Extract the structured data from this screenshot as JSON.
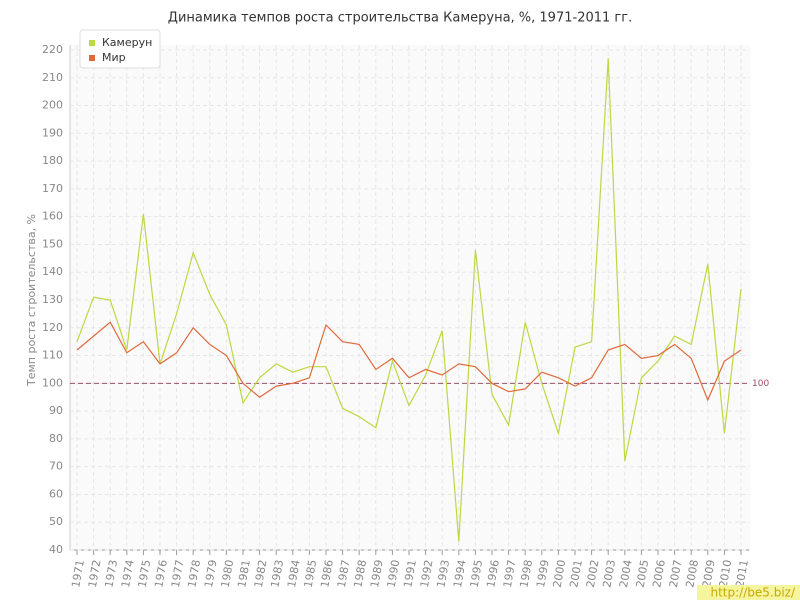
{
  "chart_data": {
    "type": "line",
    "title": "Динамика темпов роста строительства Камеруна, %, 1971-2011 гг.",
    "y_label": "Темп роста строительства, %",
    "categories": [
      "1971",
      "1972",
      "1973",
      "1974",
      "1975",
      "1976",
      "1977",
      "1978",
      "1979",
      "1980",
      "1981",
      "1982",
      "1983",
      "1984",
      "1985",
      "1986",
      "1987",
      "1988",
      "1989",
      "1990",
      "1991",
      "1992",
      "1993",
      "1994",
      "1995",
      "1996",
      "1997",
      "1998",
      "1999",
      "2000",
      "2001",
      "2002",
      "2003",
      "2004",
      "2005",
      "2006",
      "2007",
      "2008",
      "2009",
      "2010",
      "2011"
    ],
    "series": [
      {
        "name": "Камерун",
        "color": "#bcd843",
        "values": [
          115,
          131,
          130,
          112,
          161,
          107,
          125,
          147,
          132,
          121,
          93,
          102,
          107,
          104,
          106,
          106,
          91,
          88,
          84,
          108,
          92,
          103,
          119,
          43,
          148,
          96,
          85,
          122,
          100,
          82,
          113,
          115,
          217,
          72,
          102,
          108,
          117,
          114,
          143,
          82,
          134
        ]
      },
      {
        "name": "Мир",
        "color": "#e0693c",
        "values": [
          112,
          117,
          122,
          111,
          115,
          107,
          111,
          120,
          114,
          110,
          100,
          95,
          99,
          100,
          102,
          121,
          115,
          114,
          105,
          109,
          102,
          105,
          103,
          107,
          106,
          100,
          97,
          98,
          104,
          102,
          99,
          102,
          112,
          114,
          109,
          110,
          114,
          109,
          94,
          108,
          112
        ]
      }
    ],
    "ylim": [
      40,
      220
    ],
    "yticks": [
      40,
      50,
      60,
      70,
      80,
      90,
      100,
      110,
      120,
      130,
      140,
      150,
      160,
      170,
      180,
      190,
      200,
      210,
      220
    ],
    "reference_line": 100,
    "grid": true,
    "legend": "top-left",
    "watermark": "http://be5.biz/"
  }
}
